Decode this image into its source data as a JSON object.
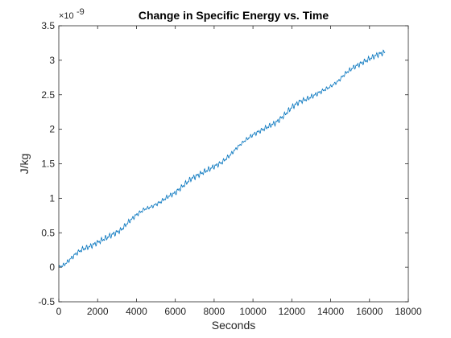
{
  "chart_data": {
    "type": "line",
    "title": "Change in Specific Energy vs. Time",
    "xlabel": "Seconds",
    "ylabel": "J/kg",
    "y_exponent_base": "×10",
    "y_exponent_power": "-9",
    "xlim": [
      0,
      18000
    ],
    "ylim": [
      -0.5,
      3.5
    ],
    "x_ticks": [
      0,
      2000,
      4000,
      6000,
      8000,
      10000,
      12000,
      14000,
      16000,
      18000
    ],
    "x_tick_labels": [
      "0",
      "2000",
      "4000",
      "6000",
      "8000",
      "10000",
      "12000",
      "14000",
      "16000",
      "18000"
    ],
    "y_ticks": [
      -0.5,
      0,
      0.5,
      1,
      1.5,
      2,
      2.5,
      3,
      3.5
    ],
    "y_tick_labels": [
      "-0.5",
      "0",
      "0.5",
      "1",
      "1.5",
      "2",
      "2.5",
      "3",
      "3.5"
    ],
    "grid": false,
    "series": [
      {
        "color": "#0072BD",
        "x": [
          0,
          300,
          600,
          900,
          1200,
          1600,
          2000,
          2400,
          2800,
          3200,
          3600,
          4000,
          4400,
          4800,
          5200,
          5600,
          6000,
          6400,
          6800,
          7200,
          7600,
          8000,
          8400,
          8800,
          9200,
          9600,
          10000,
          10400,
          10800,
          11200,
          11600,
          12000,
          12400,
          12800,
          13200,
          13600,
          14000,
          14400,
          14800,
          15200,
          15600,
          16000,
          16400,
          16800
        ],
        "y": [
          0.0,
          0.04,
          0.12,
          0.2,
          0.26,
          0.3,
          0.36,
          0.42,
          0.48,
          0.54,
          0.66,
          0.76,
          0.84,
          0.88,
          0.94,
          1.02,
          1.08,
          1.18,
          1.28,
          1.34,
          1.4,
          1.46,
          1.52,
          1.62,
          1.74,
          1.84,
          1.92,
          1.98,
          2.04,
          2.1,
          2.2,
          2.32,
          2.4,
          2.44,
          2.5,
          2.56,
          2.62,
          2.7,
          2.82,
          2.9,
          2.96,
          3.02,
          3.08,
          3.12
        ]
      }
    ]
  }
}
